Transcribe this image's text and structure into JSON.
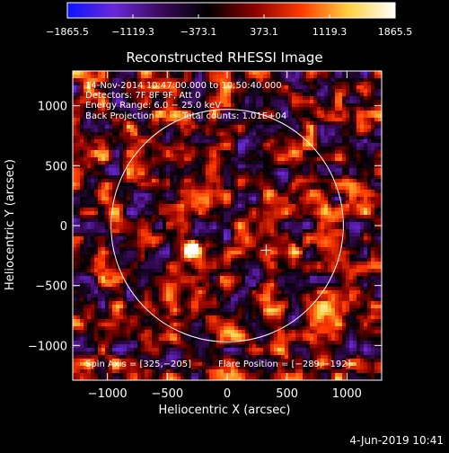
{
  "chart_data": {
    "type": "heatmap",
    "title": "Reconstructed RHESSI Image",
    "xlabel": "Heliocentric X (arcsec)",
    "ylabel": "Heliocentric Y (arcsec)",
    "xlim": [
      -1290,
      1290
    ],
    "ylim": [
      -1290,
      1290
    ],
    "xticks": [
      -1000,
      -500,
      0,
      500,
      1000
    ],
    "yticks": [
      -1000,
      -500,
      0,
      500,
      1000
    ],
    "xtick_labels": [
      "−1000",
      "−500",
      "0",
      "500",
      "1000"
    ],
    "ytick_labels": [
      "−1000",
      "−500",
      "0",
      "500",
      "1000"
    ],
    "colorbar": {
      "range": [
        -1865.5,
        1865.5
      ],
      "ticks": [
        -1865.5,
        -1119.3,
        -373.1,
        373.1,
        1119.3,
        1865.5
      ],
      "tick_labels": [
        "−1865.5",
        "−1119.3",
        "−373.1",
        "373.1",
        "1119.3",
        "1865.5"
      ],
      "colormap": [
        "#0a14ff",
        "#6a28d8",
        "#3a0a5a",
        "#000000",
        "#8a0000",
        "#ff3a00",
        "#ffd040",
        "#ffffff"
      ]
    },
    "annotations": [
      "14-Nov-2014 10:47:00.000 to 10:50:40.000",
      "Detectors: 7F 8F 9F, Att 0",
      "Energy Range: 6.0 − 25.0 keV",
      "Back Projection",
      "Total counts: 1.01E+04",
      "Spin Axis = [325,−205]",
      "Flare Position = [−289,−192]"
    ],
    "solar_limb_radius": 970,
    "spin_axis": [
      325,
      -205
    ],
    "flare_position": [
      -289,
      -192
    ],
    "grid": false
  },
  "footer": {
    "timestamp": "4-Jun-2019 10:41"
  }
}
